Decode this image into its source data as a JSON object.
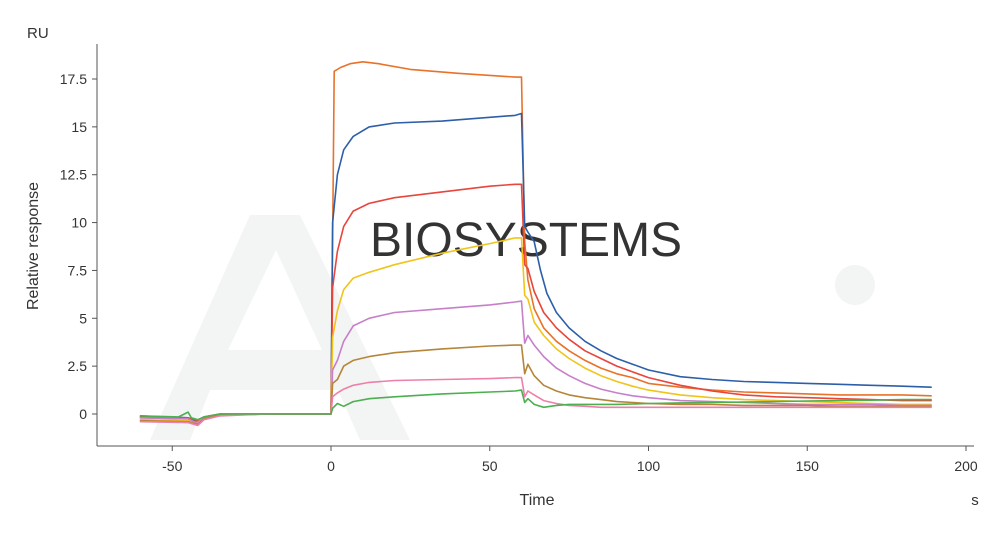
{
  "chart_data": {
    "type": "line",
    "ylabel": "Relative response",
    "xlabel": "Time",
    "y_unit": "RU",
    "x_unit": "s",
    "xlim": [
      -65,
      200
    ],
    "ylim": [
      -1.6,
      19.5
    ],
    "x_ticks": [
      -50,
      0,
      50,
      100,
      150,
      200
    ],
    "x_tick_labels": [
      "-50",
      "0",
      "50",
      "100",
      "150",
      "200"
    ],
    "y_ticks": [
      0,
      2.5,
      5,
      7.5,
      10,
      12.5,
      15,
      17.5
    ],
    "y_tick_labels": [
      "0",
      "2.5",
      "5",
      "7.5",
      "10",
      "12.5",
      "15",
      "17.5"
    ],
    "grid": false,
    "legend": "none",
    "watermark_text": "BIOSYSTEMS",
    "series": [
      {
        "color": "#e8722a",
        "points": [
          [
            -60,
            -0.2
          ],
          [
            -45,
            -0.25
          ],
          [
            -42,
            -0.4
          ],
          [
            -40,
            -0.15
          ],
          [
            -35,
            0.0
          ],
          [
            -20,
            0.0
          ],
          [
            -1,
            0.0
          ],
          [
            0,
            0.0
          ],
          [
            1,
            17.9
          ],
          [
            3,
            18.1
          ],
          [
            6,
            18.3
          ],
          [
            10,
            18.4
          ],
          [
            15,
            18.3
          ],
          [
            25,
            18.0
          ],
          [
            40,
            17.8
          ],
          [
            58,
            17.6
          ],
          [
            60,
            17.6
          ],
          [
            61,
            9.0
          ],
          [
            62,
            7.0
          ],
          [
            64,
            5.5
          ],
          [
            67,
            4.5
          ],
          [
            71,
            3.8
          ],
          [
            75,
            3.3
          ],
          [
            80,
            2.8
          ],
          [
            85,
            2.4
          ],
          [
            90,
            2.1
          ],
          [
            95,
            1.9
          ],
          [
            100,
            1.6
          ],
          [
            110,
            1.4
          ],
          [
            120,
            1.25
          ],
          [
            130,
            1.15
          ],
          [
            140,
            1.1
          ],
          [
            150,
            1.05
          ],
          [
            160,
            1.0
          ],
          [
            170,
            1.0
          ],
          [
            180,
            1.0
          ],
          [
            189,
            0.95
          ]
        ]
      },
      {
        "color": "#2d5fa8",
        "points": [
          [
            -60,
            -0.1
          ],
          [
            -45,
            -0.2
          ],
          [
            -42,
            -0.45
          ],
          [
            -40,
            -0.2
          ],
          [
            -35,
            -0.05
          ],
          [
            -20,
            0.0
          ],
          [
            -1,
            0.0
          ],
          [
            0,
            0.0
          ],
          [
            0.5,
            10.0
          ],
          [
            2,
            12.5
          ],
          [
            4,
            13.8
          ],
          [
            7,
            14.5
          ],
          [
            12,
            15.0
          ],
          [
            20,
            15.2
          ],
          [
            35,
            15.3
          ],
          [
            50,
            15.5
          ],
          [
            58,
            15.6
          ],
          [
            60,
            15.7
          ],
          [
            61,
            9.8
          ],
          [
            62,
            9.5
          ],
          [
            64,
            9.0
          ],
          [
            66,
            7.5
          ],
          [
            68,
            6.3
          ],
          [
            71,
            5.3
          ],
          [
            75,
            4.5
          ],
          [
            80,
            3.8
          ],
          [
            85,
            3.3
          ],
          [
            90,
            2.9
          ],
          [
            95,
            2.6
          ],
          [
            100,
            2.3
          ],
          [
            110,
            1.95
          ],
          [
            120,
            1.8
          ],
          [
            130,
            1.7
          ],
          [
            140,
            1.65
          ],
          [
            150,
            1.6
          ],
          [
            160,
            1.55
          ],
          [
            170,
            1.5
          ],
          [
            180,
            1.45
          ],
          [
            189,
            1.4
          ]
        ]
      },
      {
        "color": "#e8453c",
        "points": [
          [
            -60,
            -0.15
          ],
          [
            -45,
            -0.2
          ],
          [
            -42,
            -0.35
          ],
          [
            -40,
            -0.15
          ],
          [
            -35,
            0.0
          ],
          [
            -20,
            0.0
          ],
          [
            -1,
            0.0
          ],
          [
            0,
            0.0
          ],
          [
            0.5,
            6.6
          ],
          [
            2,
            8.5
          ],
          [
            4,
            9.8
          ],
          [
            7,
            10.6
          ],
          [
            12,
            11.0
          ],
          [
            20,
            11.3
          ],
          [
            35,
            11.6
          ],
          [
            50,
            11.9
          ],
          [
            58,
            12.0
          ],
          [
            60,
            12.0
          ],
          [
            61,
            7.8
          ],
          [
            62,
            7.6
          ],
          [
            64,
            6.4
          ],
          [
            67,
            5.3
          ],
          [
            71,
            4.5
          ],
          [
            75,
            3.9
          ],
          [
            80,
            3.3
          ],
          [
            85,
            2.9
          ],
          [
            90,
            2.5
          ],
          [
            95,
            2.2
          ],
          [
            100,
            1.9
          ],
          [
            110,
            1.5
          ],
          [
            120,
            1.2
          ],
          [
            130,
            1.0
          ],
          [
            140,
            0.9
          ],
          [
            150,
            0.85
          ],
          [
            160,
            0.8
          ],
          [
            170,
            0.75
          ],
          [
            180,
            0.7
          ],
          [
            189,
            0.7
          ]
        ]
      },
      {
        "color": "#f0c419",
        "points": [
          [
            -60,
            -0.3
          ],
          [
            -45,
            -0.35
          ],
          [
            -42,
            -0.45
          ],
          [
            -40,
            -0.2
          ],
          [
            -35,
            -0.05
          ],
          [
            -20,
            0.0
          ],
          [
            -1,
            0.0
          ],
          [
            0,
            0.0
          ],
          [
            0.5,
            4.0
          ],
          [
            2,
            5.4
          ],
          [
            4,
            6.5
          ],
          [
            7,
            7.1
          ],
          [
            12,
            7.4
          ],
          [
            20,
            7.8
          ],
          [
            35,
            8.4
          ],
          [
            50,
            8.9
          ],
          [
            58,
            9.2
          ],
          [
            60,
            9.2
          ],
          [
            61,
            6.2
          ],
          [
            62,
            6.0
          ],
          [
            64,
            4.8
          ],
          [
            67,
            4.1
          ],
          [
            71,
            3.4
          ],
          [
            75,
            2.9
          ],
          [
            80,
            2.4
          ],
          [
            85,
            2.0
          ],
          [
            90,
            1.7
          ],
          [
            95,
            1.45
          ],
          [
            100,
            1.25
          ],
          [
            110,
            1.0
          ],
          [
            120,
            0.85
          ],
          [
            130,
            0.75
          ],
          [
            140,
            0.7
          ],
          [
            150,
            0.65
          ],
          [
            160,
            0.6
          ],
          [
            170,
            0.55
          ],
          [
            180,
            0.5
          ],
          [
            189,
            0.5
          ]
        ]
      },
      {
        "color": "#c77fca",
        "points": [
          [
            -60,
            -0.2
          ],
          [
            -45,
            -0.25
          ],
          [
            -42,
            -0.5
          ],
          [
            -40,
            -0.2
          ],
          [
            -35,
            0.0
          ],
          [
            -20,
            0.0
          ],
          [
            -1,
            0.0
          ],
          [
            0,
            0.0
          ],
          [
            0.5,
            2.3
          ],
          [
            2,
            2.8
          ],
          [
            4,
            3.8
          ],
          [
            7,
            4.6
          ],
          [
            12,
            5.0
          ],
          [
            20,
            5.3
          ],
          [
            35,
            5.5
          ],
          [
            50,
            5.7
          ],
          [
            58,
            5.85
          ],
          [
            60,
            5.9
          ],
          [
            61,
            3.7
          ],
          [
            62,
            4.1
          ],
          [
            64,
            3.6
          ],
          [
            67,
            3.0
          ],
          [
            71,
            2.4
          ],
          [
            75,
            2.0
          ],
          [
            80,
            1.6
          ],
          [
            85,
            1.3
          ],
          [
            90,
            1.1
          ],
          [
            95,
            0.95
          ],
          [
            100,
            0.85
          ],
          [
            110,
            0.7
          ],
          [
            120,
            0.65
          ],
          [
            130,
            0.6
          ],
          [
            140,
            0.55
          ],
          [
            150,
            0.5
          ],
          [
            160,
            0.5
          ],
          [
            170,
            0.5
          ],
          [
            180,
            0.45
          ],
          [
            189,
            0.45
          ]
        ]
      },
      {
        "color": "#b5853a",
        "points": [
          [
            -60,
            -0.35
          ],
          [
            -45,
            -0.4
          ],
          [
            -42,
            -0.55
          ],
          [
            -40,
            -0.25
          ],
          [
            -35,
            -0.05
          ],
          [
            -20,
            0.0
          ],
          [
            -1,
            0.0
          ],
          [
            0,
            0.0
          ],
          [
            0.5,
            1.6
          ],
          [
            2,
            1.8
          ],
          [
            4,
            2.5
          ],
          [
            7,
            2.8
          ],
          [
            12,
            3.0
          ],
          [
            20,
            3.2
          ],
          [
            35,
            3.4
          ],
          [
            50,
            3.55
          ],
          [
            58,
            3.6
          ],
          [
            60,
            3.6
          ],
          [
            61,
            2.1
          ],
          [
            62,
            2.6
          ],
          [
            64,
            2.0
          ],
          [
            67,
            1.5
          ],
          [
            71,
            1.2
          ],
          [
            75,
            1.0
          ],
          [
            80,
            0.85
          ],
          [
            85,
            0.75
          ],
          [
            90,
            0.65
          ],
          [
            95,
            0.6
          ],
          [
            100,
            0.55
          ],
          [
            110,
            0.5
          ],
          [
            120,
            0.5
          ],
          [
            130,
            0.45
          ],
          [
            140,
            0.45
          ],
          [
            150,
            0.45
          ],
          [
            160,
            0.4
          ],
          [
            170,
            0.4
          ],
          [
            180,
            0.4
          ],
          [
            189,
            0.4
          ]
        ]
      },
      {
        "color": "#ee7fab",
        "points": [
          [
            -60,
            -0.4
          ],
          [
            -45,
            -0.45
          ],
          [
            -42,
            -0.6
          ],
          [
            -40,
            -0.3
          ],
          [
            -35,
            -0.1
          ],
          [
            -20,
            0.0
          ],
          [
            -1,
            0.0
          ],
          [
            0,
            0.0
          ],
          [
            0.5,
            0.9
          ],
          [
            2,
            1.1
          ],
          [
            4,
            1.3
          ],
          [
            7,
            1.5
          ],
          [
            12,
            1.65
          ],
          [
            20,
            1.75
          ],
          [
            35,
            1.8
          ],
          [
            50,
            1.85
          ],
          [
            58,
            1.9
          ],
          [
            60,
            1.9
          ],
          [
            61,
            0.9
          ],
          [
            62,
            1.2
          ],
          [
            64,
            1.0
          ],
          [
            67,
            0.7
          ],
          [
            71,
            0.55
          ],
          [
            75,
            0.45
          ],
          [
            80,
            0.4
          ],
          [
            85,
            0.35
          ],
          [
            90,
            0.35
          ],
          [
            95,
            0.35
          ],
          [
            100,
            0.35
          ],
          [
            110,
            0.35
          ],
          [
            120,
            0.35
          ],
          [
            130,
            0.35
          ],
          [
            140,
            0.35
          ],
          [
            150,
            0.35
          ],
          [
            160,
            0.35
          ],
          [
            170,
            0.35
          ],
          [
            180,
            0.35
          ],
          [
            189,
            0.35
          ]
        ]
      },
      {
        "color": "#4caf50",
        "points": [
          [
            -60,
            -0.1
          ],
          [
            -48,
            -0.15
          ],
          [
            -45,
            0.1
          ],
          [
            -44,
            -0.2
          ],
          [
            -42,
            -0.3
          ],
          [
            -40,
            -0.15
          ],
          [
            -35,
            0.0
          ],
          [
            -20,
            0.0
          ],
          [
            -1,
            0.0
          ],
          [
            0,
            0.0
          ],
          [
            0.5,
            0.3
          ],
          [
            2,
            0.55
          ],
          [
            4,
            0.4
          ],
          [
            7,
            0.65
          ],
          [
            12,
            0.8
          ],
          [
            20,
            0.9
          ],
          [
            35,
            1.05
          ],
          [
            50,
            1.15
          ],
          [
            58,
            1.2
          ],
          [
            60,
            1.25
          ],
          [
            61,
            0.6
          ],
          [
            62,
            0.8
          ],
          [
            64,
            0.5
          ],
          [
            67,
            0.35
          ],
          [
            71,
            0.45
          ],
          [
            75,
            0.5
          ],
          [
            80,
            0.5
          ],
          [
            85,
            0.5
          ],
          [
            90,
            0.5
          ],
          [
            95,
            0.52
          ],
          [
            100,
            0.55
          ],
          [
            110,
            0.58
          ],
          [
            120,
            0.6
          ],
          [
            130,
            0.62
          ],
          [
            140,
            0.65
          ],
          [
            150,
            0.68
          ],
          [
            160,
            0.7
          ],
          [
            170,
            0.72
          ],
          [
            180,
            0.75
          ],
          [
            189,
            0.75
          ]
        ]
      }
    ]
  }
}
